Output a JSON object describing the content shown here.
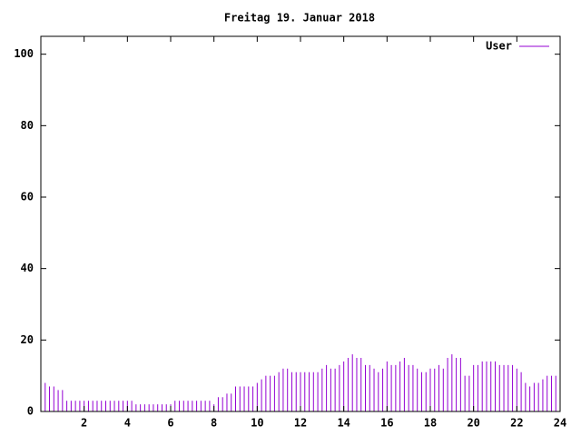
{
  "chart_data": {
    "type": "impulse",
    "title": "Freitag 19. Januar 2018",
    "x": [
      0,
      0.2,
      0.4,
      0.6,
      0.8,
      1,
      1.2,
      1.4,
      1.6,
      1.8,
      2,
      2.2,
      2.4,
      2.6,
      2.8,
      3,
      3.2,
      3.4,
      3.6,
      3.8,
      4,
      4.2,
      4.4,
      4.6,
      4.8,
      5,
      5.2,
      5.4,
      5.6,
      5.8,
      6,
      6.2,
      6.4,
      6.6,
      6.8,
      7,
      7.2,
      7.4,
      7.6,
      7.8,
      8,
      8.2,
      8.4,
      8.6,
      8.8,
      9,
      9.2,
      9.4,
      9.6,
      9.8,
      10,
      10.2,
      10.4,
      10.6,
      10.8,
      11,
      11.2,
      11.4,
      11.6,
      11.8,
      12,
      12.2,
      12.4,
      12.6,
      12.8,
      13,
      13.2,
      13.4,
      13.6,
      13.8,
      14,
      14.2,
      14.4,
      14.6,
      14.8,
      15,
      15.2,
      15.4,
      15.6,
      15.8,
      16,
      16.2,
      16.4,
      16.6,
      16.8,
      17,
      17.2,
      17.4,
      17.6,
      17.8,
      18,
      18.2,
      18.4,
      18.6,
      18.8,
      19,
      19.2,
      19.4,
      19.6,
      19.8,
      20,
      20.2,
      20.4,
      20.6,
      20.8,
      21,
      21.2,
      21.4,
      21.6,
      21.8,
      22,
      22.2,
      22.4,
      22.6,
      22.8,
      23,
      23.2,
      23.4,
      23.6,
      23.8
    ],
    "series": [
      {
        "name": "User",
        "color": "#9400d3",
        "values": [
          8,
          8,
          7,
          7,
          6,
          6,
          3,
          3,
          3,
          3,
          3,
          3,
          3,
          3,
          3,
          3,
          3,
          3,
          3,
          3,
          3,
          3,
          2,
          2,
          2,
          2,
          2,
          2,
          2,
          2,
          2,
          3,
          3,
          3,
          3,
          3,
          3,
          3,
          3,
          3,
          2,
          4,
          4,
          5,
          5,
          7,
          7,
          7,
          7,
          7,
          8,
          9,
          10,
          10,
          10,
          11,
          12,
          12,
          11,
          11,
          11,
          11,
          11,
          11,
          11,
          12,
          13,
          12,
          12,
          13,
          14,
          15,
          16,
          15,
          15,
          13,
          13,
          12,
          11,
          12,
          14,
          13,
          13,
          14,
          15,
          13,
          13,
          12,
          11,
          11,
          12,
          12,
          13,
          12,
          15,
          16,
          15,
          15,
          10,
          10,
          13,
          13,
          14,
          14,
          14,
          14,
          13,
          13,
          13,
          13,
          12,
          11,
          8,
          7,
          8,
          8,
          9,
          10,
          10,
          10
        ]
      }
    ],
    "xlim": [
      0,
      24
    ],
    "xticks": [
      2,
      4,
      6,
      8,
      10,
      12,
      14,
      16,
      18,
      20,
      22,
      24
    ],
    "ylim": [
      0,
      105
    ],
    "yticks": [
      0,
      20,
      40,
      60,
      80,
      100
    ],
    "legend": "top-right"
  }
}
